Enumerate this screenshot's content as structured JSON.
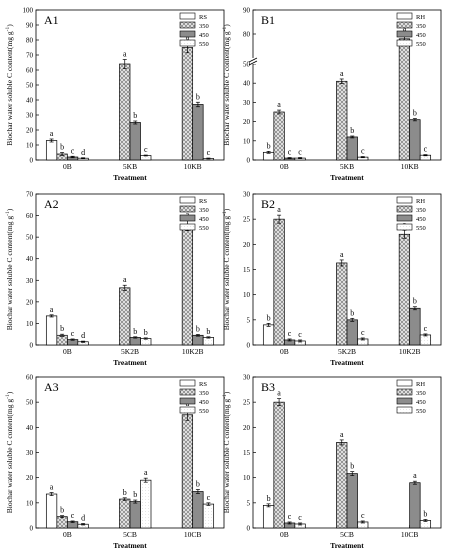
{
  "figure": {
    "shared_ylabel": "Biochar water soluble C content(mg g",
    "ylabel_sup": "-1",
    "ylabel_close": ")",
    "shared_xlabel": "Treatment"
  },
  "colors": {
    "axis": "#000000",
    "bar_fill": "#ffffff",
    "bar_350": "#dcdcdc",
    "bar_450": "#8c8c8c",
    "bar_550": "#f4f4f4"
  },
  "chart_data": [
    {
      "id": "A1",
      "label": "A1",
      "type": "bar",
      "categories": [
        "0B",
        "5KB",
        "10KB"
      ],
      "ylim": [
        0,
        100
      ],
      "yticks": [
        0,
        10,
        20,
        30,
        40,
        50,
        60,
        70,
        80,
        90,
        100
      ],
      "xlabel": "Treatment",
      "ylabel": "Biochar water soluble C content(mg g-1)",
      "legend_position": "top-right",
      "series": [
        {
          "name": "RS",
          "pattern": "white",
          "values": [
            13,
            0,
            0
          ],
          "errors": [
            1,
            0,
            0
          ],
          "letters": [
            "a",
            "",
            ""
          ]
        },
        {
          "name": "350",
          "pattern": "crosshatch",
          "values": [
            4,
            64,
            75
          ],
          "errors": [
            1,
            3,
            3.5
          ],
          "letters": [
            "b",
            "a",
            "a"
          ]
        },
        {
          "name": "450",
          "pattern": "gray",
          "values": [
            2,
            25,
            37
          ],
          "errors": [
            0.5,
            1,
            1.5
          ],
          "letters": [
            "c",
            "b",
            "b"
          ]
        },
        {
          "name": "550",
          "pattern": "light",
          "values": [
            1.2,
            3,
            1
          ],
          "errors": [
            0.3,
            0.3,
            0.3
          ],
          "letters": [
            "d",
            "c",
            "c"
          ]
        }
      ]
    },
    {
      "id": "B1",
      "label": "B1",
      "type": "bar",
      "categories": [
        "0B",
        "5KB",
        "10KB"
      ],
      "axis_break": true,
      "lower_range": [
        0,
        50
      ],
      "lower_ticks": [
        0,
        10,
        20,
        30,
        40,
        50
      ],
      "upper_range": [
        70,
        90
      ],
      "upper_ticks": [
        80,
        90
      ],
      "xlabel": "Treatment",
      "ylabel": "Biochar water soluble C content(mg g-1)",
      "legend_position": "top-right",
      "series": [
        {
          "name": "RH",
          "pattern": "white",
          "values": [
            4,
            0,
            0
          ],
          "errors": [
            0.5,
            0,
            0
          ],
          "letters": [
            "b",
            "",
            ""
          ]
        },
        {
          "name": "350",
          "pattern": "crosshatch",
          "values": [
            25,
            41,
            78
          ],
          "errors": [
            1,
            1.2,
            2
          ],
          "letters": [
            "a",
            "a",
            "a"
          ]
        },
        {
          "name": "450",
          "pattern": "gray",
          "values": [
            1,
            12,
            21
          ],
          "errors": [
            0.3,
            0.5,
            0.6
          ],
          "letters": [
            "c",
            "b",
            "b"
          ]
        },
        {
          "name": "550",
          "pattern": "light",
          "values": [
            1,
            1.5,
            2.5
          ],
          "errors": [
            0.3,
            0.3,
            0.3
          ],
          "letters": [
            "c",
            "c",
            "c"
          ]
        }
      ]
    },
    {
      "id": "A2",
      "label": "A2",
      "type": "bar",
      "categories": [
        "0B",
        "5K2B",
        "10K2B"
      ],
      "ylim": [
        0,
        70
      ],
      "yticks": [
        0,
        10,
        20,
        30,
        40,
        50,
        60,
        70
      ],
      "xlabel": "Treatment",
      "ylabel": "Biochar water soluble C content(mg g-1)",
      "legend_position": "top-right",
      "series": [
        {
          "name": "RS",
          "pattern": "white",
          "values": [
            13.5,
            0,
            0
          ],
          "errors": [
            0.5,
            0,
            0
          ],
          "letters": [
            "a",
            "",
            ""
          ]
        },
        {
          "name": "350",
          "pattern": "crosshatch",
          "values": [
            4.5,
            26.5,
            55.5
          ],
          "errors": [
            0.5,
            1.2,
            2.5
          ],
          "letters": [
            "b",
            "a",
            "a"
          ]
        },
        {
          "name": "450",
          "pattern": "gray",
          "values": [
            2.5,
            3.5,
            4.5
          ],
          "errors": [
            0.3,
            0.3,
            0.4
          ],
          "letters": [
            "c",
            "b",
            "b"
          ]
        },
        {
          "name": "550",
          "pattern": "light",
          "values": [
            1.5,
            3,
            3.5
          ],
          "errors": [
            0.3,
            0.3,
            0.3
          ],
          "letters": [
            "d",
            "b",
            "b"
          ]
        }
      ]
    },
    {
      "id": "B2",
      "label": "B2",
      "type": "bar",
      "categories": [
        "0B",
        "5K2B",
        "10K2B"
      ],
      "ylim": [
        0,
        30
      ],
      "yticks": [
        0,
        5,
        10,
        15,
        20,
        25,
        30
      ],
      "xlabel": "Treatment",
      "ylabel": "Biochar water soluble C content(mg g-1)",
      "legend_position": "top-right",
      "series": [
        {
          "name": "RH",
          "pattern": "white",
          "values": [
            4,
            0,
            0
          ],
          "errors": [
            0.3,
            0,
            0
          ],
          "letters": [
            "b",
            "",
            ""
          ]
        },
        {
          "name": "350",
          "pattern": "crosshatch",
          "values": [
            25,
            16.3,
            22
          ],
          "errors": [
            0.8,
            0.6,
            0.8
          ],
          "letters": [
            "a",
            "a",
            "a"
          ]
        },
        {
          "name": "450",
          "pattern": "gray",
          "values": [
            1,
            5,
            7.3
          ],
          "errors": [
            0.2,
            0.3,
            0.3
          ],
          "letters": [
            "c",
            "b",
            "b"
          ]
        },
        {
          "name": "550",
          "pattern": "light",
          "values": [
            0.8,
            1.2,
            2
          ],
          "errors": [
            0.2,
            0.2,
            0.2
          ],
          "letters": [
            "c",
            "c",
            "c"
          ]
        }
      ]
    },
    {
      "id": "A3",
      "label": "A3",
      "type": "bar",
      "categories": [
        "0B",
        "5CB",
        "10CB"
      ],
      "ylim": [
        0,
        60
      ],
      "yticks": [
        0,
        10,
        20,
        30,
        40,
        50,
        60
      ],
      "xlabel": "Treatment",
      "ylabel": "Biochar water soluble C content(mg g-1)",
      "legend_position": "top-right",
      "series": [
        {
          "name": "RS",
          "pattern": "white",
          "values": [
            13.5,
            0,
            0
          ],
          "errors": [
            0.6,
            0,
            0
          ],
          "letters": [
            "a",
            "",
            ""
          ]
        },
        {
          "name": "350",
          "pattern": "crosshatch",
          "values": [
            4.5,
            11.5,
            45
          ],
          "errors": [
            0.4,
            0.5,
            2.2
          ],
          "letters": [
            "b",
            "b",
            "a"
          ]
        },
        {
          "name": "450",
          "pattern": "gray",
          "values": [
            2.5,
            10.5,
            14.5
          ],
          "errors": [
            0.3,
            0.6,
            0.8
          ],
          "letters": [
            "c",
            "b",
            "b"
          ]
        },
        {
          "name": "550",
          "pattern": "light",
          "values": [
            1.5,
            19,
            9.5
          ],
          "errors": [
            0.3,
            0.8,
            0.5
          ],
          "letters": [
            "d",
            "a",
            "c"
          ]
        }
      ]
    },
    {
      "id": "B3",
      "label": "B3",
      "type": "bar",
      "categories": [
        "0B",
        "5CB",
        "10CB"
      ],
      "ylim": [
        0,
        30
      ],
      "yticks": [
        0,
        5,
        10,
        15,
        20,
        25,
        30
      ],
      "xlabel": "Treatment",
      "ylabel": "Biochar water soluble C content(mg g-1)",
      "legend_position": "top-right",
      "series": [
        {
          "name": "RH",
          "pattern": "white",
          "values": [
            4.5,
            0,
            0
          ],
          "errors": [
            0.3,
            0,
            0
          ],
          "letters": [
            "b",
            "",
            ""
          ]
        },
        {
          "name": "350",
          "pattern": "crosshatch",
          "values": [
            25,
            17,
            0
          ],
          "errors": [
            0.7,
            0.5,
            0
          ],
          "letters": [
            "a",
            "a",
            ""
          ]
        },
        {
          "name": "450",
          "pattern": "gray",
          "values": [
            1,
            10.8,
            9
          ],
          "errors": [
            0.2,
            0.4,
            0.3
          ],
          "letters": [
            "c",
            "b",
            "a"
          ]
        },
        {
          "name": "550",
          "pattern": "light",
          "values": [
            0.8,
            1.2,
            1.5
          ],
          "errors": [
            0.2,
            0.2,
            0.2
          ],
          "letters": [
            "c",
            "c",
            "b"
          ]
        }
      ]
    }
  ]
}
